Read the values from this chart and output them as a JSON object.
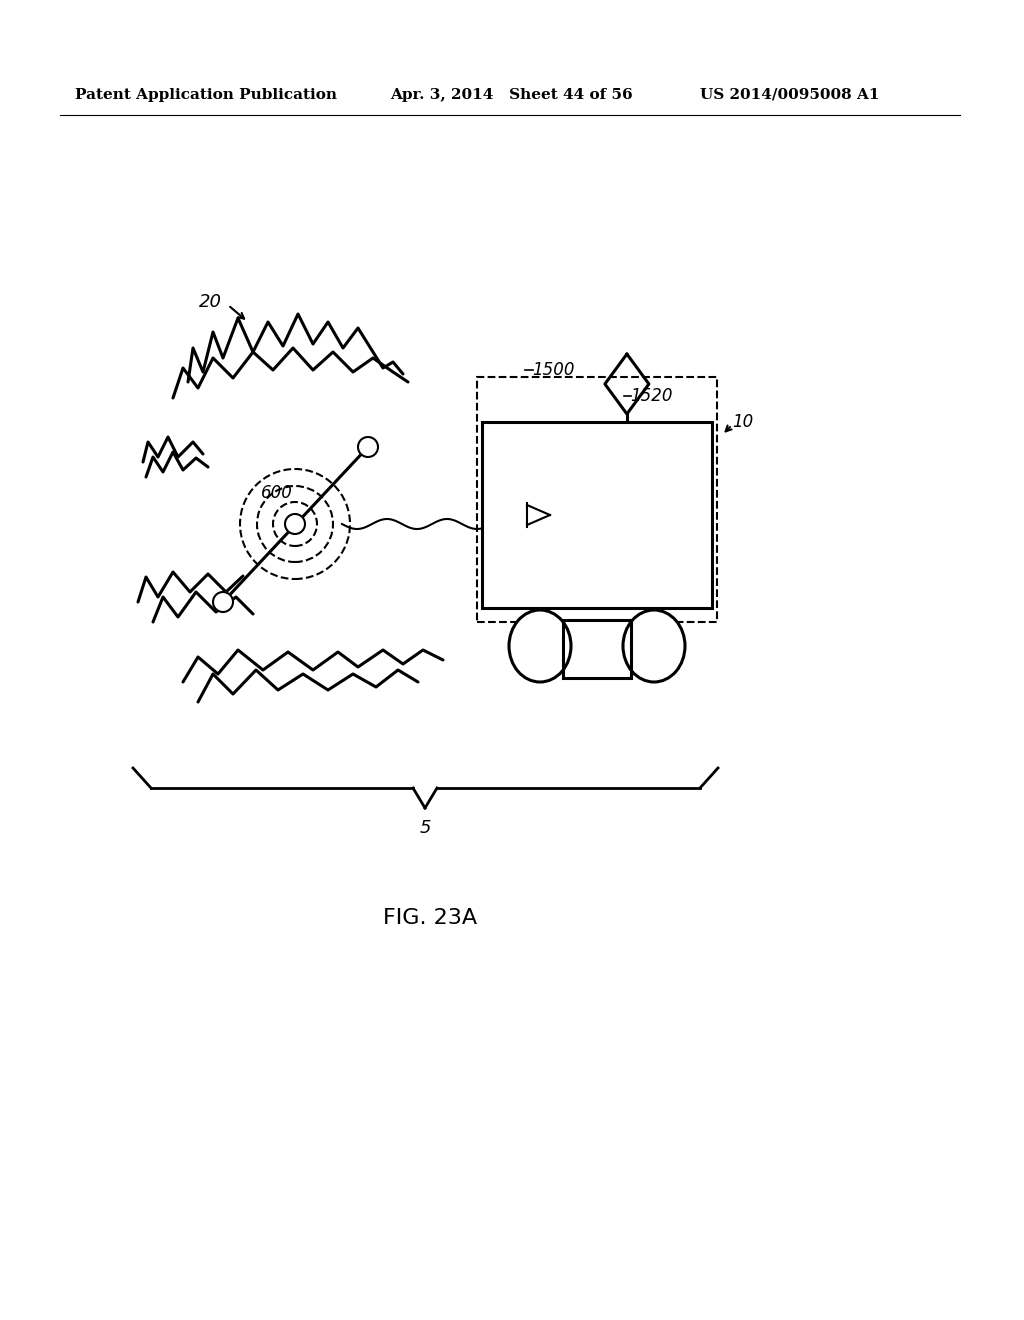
{
  "bg_color": "#ffffff",
  "text_color": "#000000",
  "header_left": "Patent Application Publication",
  "header_mid": "Apr. 3, 2014   Sheet 44 of 56",
  "header_right": "US 2014/0095008 A1",
  "fig_label": "FIG. 23A"
}
